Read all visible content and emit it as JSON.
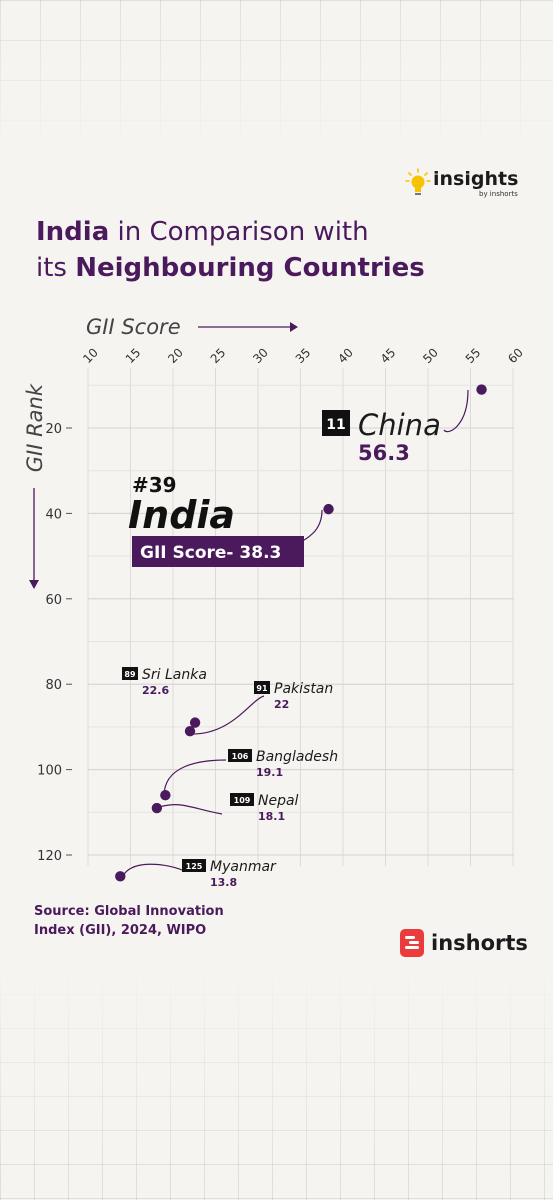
{
  "brand": {
    "insights_word": "insights",
    "insights_by": "by inshorts",
    "inshorts_word": "inshorts"
  },
  "title": {
    "part1_bold": "India",
    "part1_rest": " in Comparison with",
    "part2_plain": "its ",
    "part2_bold": "Neighbouring Countries"
  },
  "source": "Source: Global Innovation Index (GII), 2024, WIPO",
  "colors": {
    "accent": "#4a1a5c",
    "badge": "#111111",
    "background": "#f6f4f1",
    "brand_red": "#ea3c3c",
    "bulb": "#f5c400"
  },
  "chart_data": {
    "type": "scatter",
    "xlabel": "GII Score",
    "ylabel": "GII Rank",
    "x_ticks": [
      10,
      15,
      20,
      25,
      30,
      35,
      40,
      45,
      50,
      55,
      60
    ],
    "y_ticks": [
      20,
      40,
      60,
      80,
      100,
      120
    ],
    "xlim": [
      10,
      60
    ],
    "ylim": [
      0,
      125
    ],
    "y_reversed": true,
    "grid": true,
    "points": [
      {
        "country": "China",
        "rank": 11,
        "rank_label": "11",
        "score": 56.3,
        "score_label": "56.3"
      },
      {
        "country": "India",
        "rank": 39,
        "rank_label": "#39",
        "score": 38.3,
        "score_label": "GII Score- 38.3"
      },
      {
        "country": "Sri Lanka",
        "rank": 89,
        "rank_label": "89",
        "score": 22.6,
        "score_label": "22.6"
      },
      {
        "country": "Pakistan",
        "rank": 91,
        "rank_label": "91",
        "score": 22,
        "score_label": "22"
      },
      {
        "country": "Bangladesh",
        "rank": 106,
        "rank_label": "106",
        "score": 19.1,
        "score_label": "19.1"
      },
      {
        "country": "Nepal",
        "rank": 109,
        "rank_label": "109",
        "score": 18.1,
        "score_label": "18.1"
      },
      {
        "country": "Myanmar",
        "rank": 125,
        "rank_label": "125",
        "score": 13.8,
        "score_label": "13.8"
      }
    ]
  }
}
